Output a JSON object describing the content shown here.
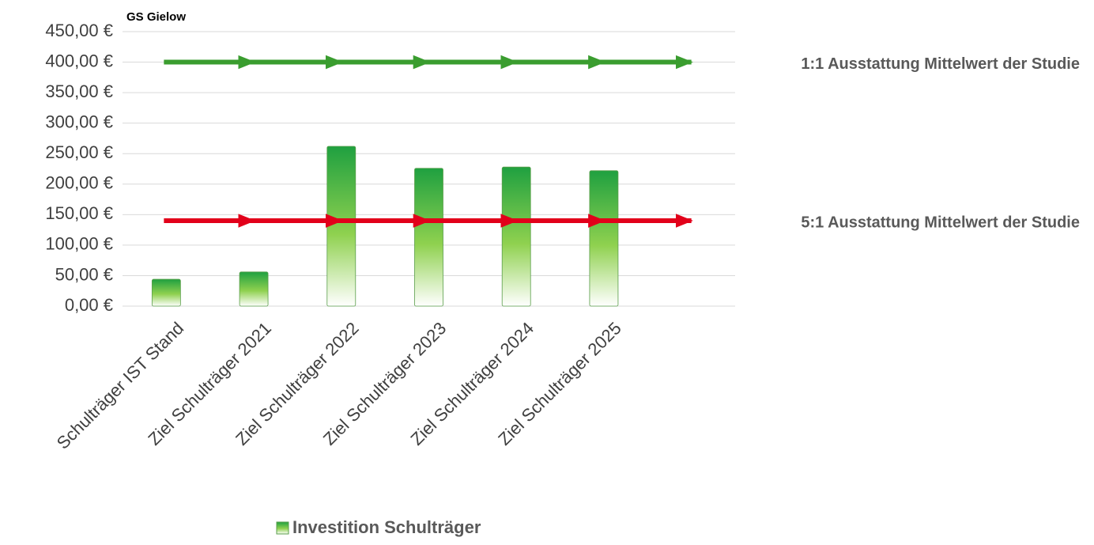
{
  "chart_data": {
    "type": "bar",
    "title": "GS Gielow",
    "categories": [
      "Schulträger IST Stand",
      "Ziel Schulträger 2021",
      "Ziel Schulträger 2022",
      "Ziel Schulträger 2023",
      "Ziel Schulträger 2024",
      "Ziel Schulträger 2025",
      null
    ],
    "series": [
      {
        "name": "Investition Schulträger",
        "type": "bar",
        "color": "#2eaa3c",
        "values": [
          44,
          56,
          262,
          226,
          228,
          222,
          null
        ]
      },
      {
        "name": "1:1 Ausstattung Mittelwert der Studie",
        "type": "line",
        "color": "#3a9d2f",
        "values": [
          400,
          400,
          400,
          400,
          400,
          400,
          400
        ]
      },
      {
        "name": "5:1 Ausstattung Mittelwert der Studie",
        "type": "line",
        "color": "#e2001a",
        "values": [
          140,
          140,
          140,
          140,
          140,
          140,
          140
        ]
      }
    ],
    "ylim": [
      0,
      450
    ],
    "yticks": [
      {
        "value": 0,
        "label": "0,00 €"
      },
      {
        "value": 50,
        "label": "50,00 €"
      },
      {
        "value": 100,
        "label": "100,00 €"
      },
      {
        "value": 150,
        "label": "150,00 €"
      },
      {
        "value": 200,
        "label": "200,00 €"
      },
      {
        "value": 250,
        "label": "250,00 €"
      },
      {
        "value": 300,
        "label": "300,00 €"
      },
      {
        "value": 350,
        "label": "350,00 €"
      },
      {
        "value": 400,
        "label": "400,00 €"
      },
      {
        "value": 450,
        "label": "450,00 €"
      }
    ],
    "grid": true,
    "legend": "bottom"
  }
}
